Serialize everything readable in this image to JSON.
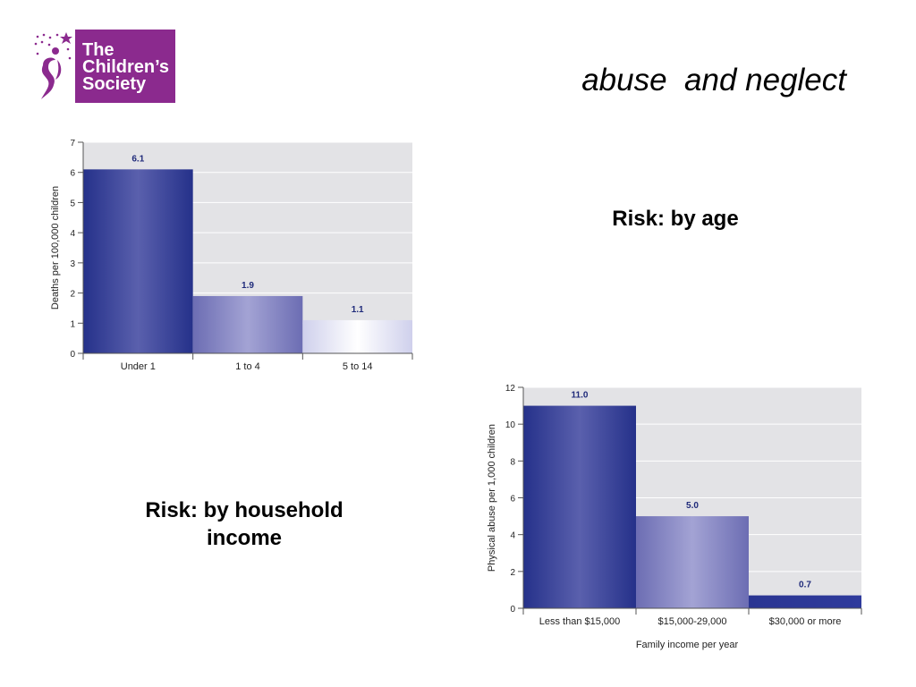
{
  "logo": {
    "lines": [
      "The",
      "Children’s",
      "Society"
    ]
  },
  "slide_title": "abuse  and neglect",
  "captions": {
    "age": "Risk: by age",
    "income_line1": "Risk: by household",
    "income_line2": "income"
  },
  "colors": {
    "brand_purple": "#8b2a8e",
    "plot_bg": "#e3e3e6",
    "bar_dark": "#2e3a94",
    "bar_mid": "#7a7bbd",
    "bar_light": "#e6e6f5",
    "label_blue": "#1f2a7a"
  },
  "chart_data": [
    {
      "type": "bar",
      "categories": [
        "Under 1",
        "1 to 4",
        "5 to 14"
      ],
      "values": [
        6.1,
        1.9,
        1.1
      ],
      "value_labels": [
        "6.1",
        "1.9",
        "1.1"
      ],
      "ylabel": "Deaths per 100,000 children",
      "xlabel": "",
      "ylim": [
        0,
        7
      ],
      "yticks": [
        0,
        1,
        2,
        3,
        4,
        5,
        6,
        7
      ],
      "grid": true
    },
    {
      "type": "bar",
      "categories": [
        "Less than $15,000",
        "$15,000-29,000",
        "$30,000 or more"
      ],
      "values": [
        11.0,
        5.0,
        0.7
      ],
      "value_labels": [
        "11.0",
        "5.0",
        "0.7"
      ],
      "ylabel": "Physical abuse per 1,000 children",
      "xlabel": "Family income per year",
      "ylim": [
        0,
        12
      ],
      "yticks": [
        0,
        2,
        4,
        6,
        8,
        10,
        12
      ],
      "grid": true
    }
  ]
}
